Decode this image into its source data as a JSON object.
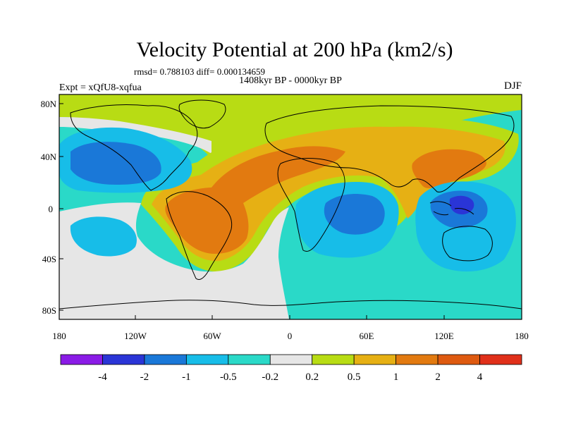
{
  "title": "Velocity Potential at 200 hPa (km2/s)",
  "stats_line": "rmsd= 0.788103 diff= 0.000134659",
  "period_line": "1408kyr BP - 0000kyr BP",
  "experiment": "Expt = xQfU8-xqfua",
  "season": "DJF",
  "lon_ticks": [
    "180",
    "120W",
    "60W",
    "0",
    "60E",
    "120E",
    "180"
  ],
  "lat_ticks": [
    "80N",
    "40N",
    "0",
    "40S",
    "80S"
  ],
  "colorbar": {
    "colors": [
      "#8a1be6",
      "#2a35d6",
      "#1a78d8",
      "#17bde8",
      "#2ad9c8",
      "#e6e6e6",
      "#b8dc14",
      "#e6b014",
      "#e27a10",
      "#de5a10",
      "#e0301a"
    ],
    "labels": [
      "-4",
      "-2",
      "-1",
      "-0.5",
      "-0.2",
      "0.2",
      "0.5",
      "1",
      "2",
      "4"
    ]
  }
}
